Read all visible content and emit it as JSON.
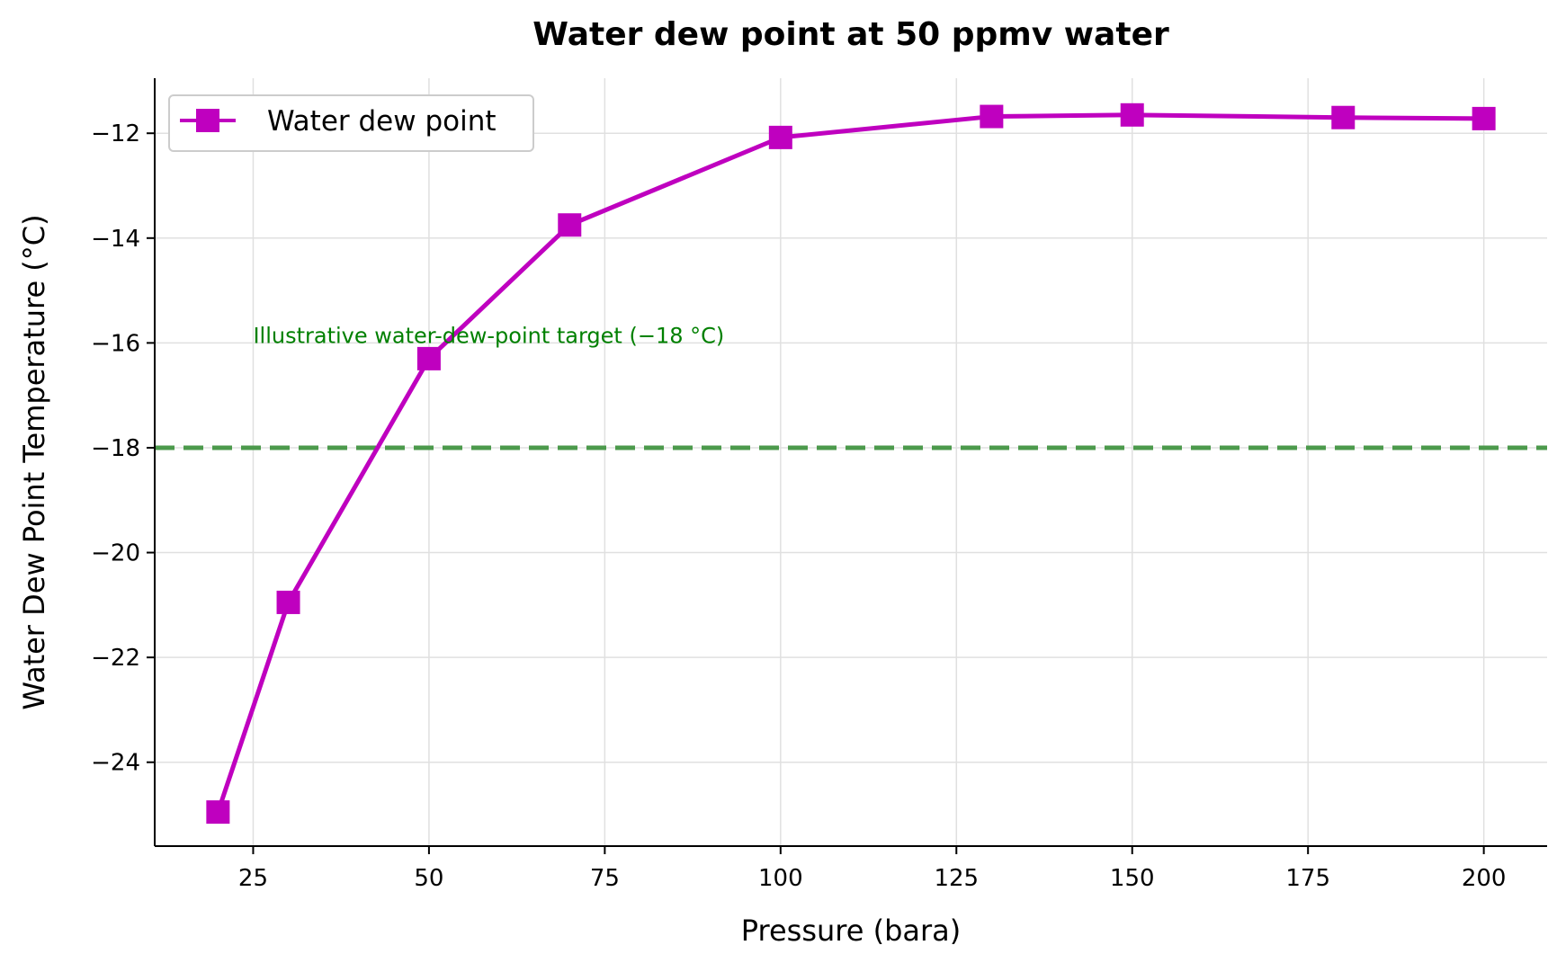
{
  "chart_data": {
    "type": "line",
    "title": "Water dew point at 50 ppmv water",
    "xlabel": "Pressure (bara)",
    "ylabel": "Water Dew Point Temperature (°C)",
    "xlim": [
      11,
      209
    ],
    "ylim": [
      -25.6,
      -10.95
    ],
    "xticks": [
      25,
      50,
      75,
      100,
      125,
      150,
      175,
      200
    ],
    "yticks": [
      -24,
      -22,
      -20,
      -18,
      -16,
      -14,
      -12
    ],
    "xtick_labels": [
      "25",
      "50",
      "75",
      "100",
      "125",
      "150",
      "175",
      "200"
    ],
    "ytick_labels": [
      "−24",
      "−22",
      "−20",
      "−18",
      "−16",
      "−14",
      "−12"
    ],
    "grid": true,
    "legend_position": "top-left",
    "series": [
      {
        "name": "Water dew point",
        "color": "#bf00bf",
        "marker": "square",
        "x": [
          20,
          30,
          50,
          70,
          100,
          130,
          150,
          180,
          200
        ],
        "y": [
          -24.95,
          -20.95,
          -16.3,
          -13.75,
          -12.08,
          -11.68,
          -11.65,
          -11.7,
          -11.72
        ]
      }
    ],
    "reference_line": {
      "y": -18,
      "color": "#4c9a4c",
      "style": "dashed"
    },
    "annotation": {
      "text": "Illustrative water-dew-point target (−18 °C)",
      "x": 25,
      "y": -16,
      "color": "#008000"
    }
  }
}
